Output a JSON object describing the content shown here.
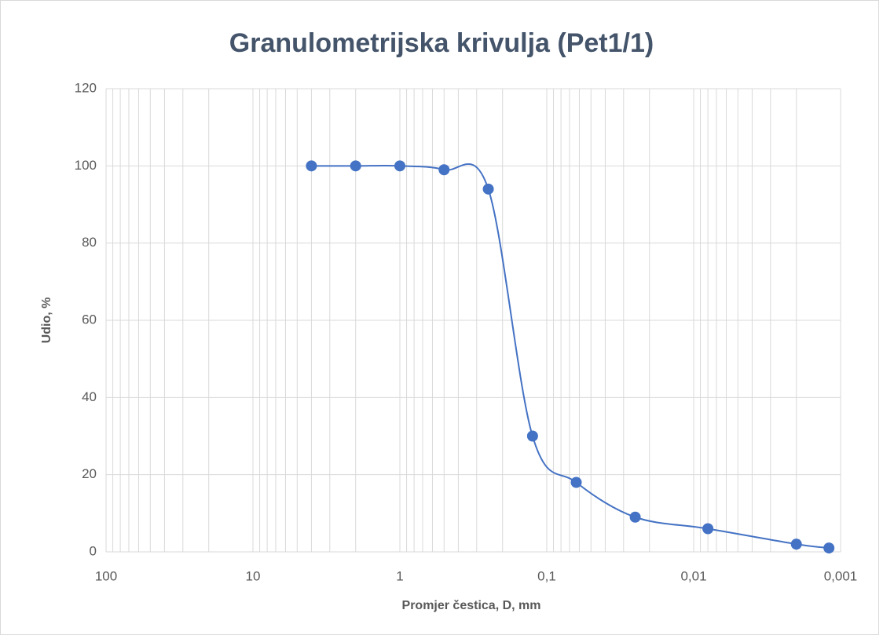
{
  "chart_data": {
    "type": "line",
    "title": "Granulometrijska krivulja (Pet1/1)",
    "x_label": "Promjer čestica, D, mm",
    "y_label": "Udio, %",
    "x": [
      4,
      2,
      1,
      0.5,
      0.25,
      0.125,
      0.063,
      0.025,
      0.008,
      0.002,
      0.0012
    ],
    "series": [
      {
        "name": "Pet1/1",
        "color": "#4472c4",
        "values": [
          100,
          100,
          100,
          99,
          94,
          30,
          18,
          9,
          6,
          2,
          1
        ]
      }
    ],
    "xscale": "log",
    "xlim": [
      100,
      0.001
    ],
    "xticks": [
      100,
      10,
      1,
      {
        "value": 0.1,
        "label": "0,1"
      },
      {
        "value": 0.01,
        "label": "0,01"
      },
      {
        "value": 0.001,
        "label": "0,001"
      }
    ],
    "ylim": [
      0,
      120
    ],
    "yticks": [
      0,
      20,
      40,
      60,
      80,
      100,
      120
    ],
    "grid": true,
    "smooth": true
  }
}
